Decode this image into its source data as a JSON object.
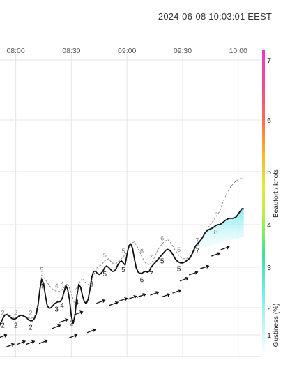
{
  "header": {
    "timestamp": "2024-06-08 10:03:01 EEST"
  },
  "chart_data": {
    "type": "line",
    "x_ticks": [
      "08:00",
      "08:30",
      "09:00",
      "09:30",
      "10:00"
    ],
    "x_tick_minutes": [
      480,
      510,
      540,
      570,
      600
    ],
    "xlim_minutes": [
      470,
      611
    ],
    "color_scale": {
      "ylabel": "Beaufort / knots",
      "ylabel_gust": "Gustiness (%)",
      "beaufort_ticks": [
        1,
        2,
        3,
        4,
        5,
        6,
        7
      ],
      "colors": [
        "#ffffff",
        "#bdf3f5",
        "#6fe7ee",
        "#38e39a",
        "#aef046",
        "#e7e93a",
        "#f7b42a",
        "#f86a54",
        "#f34a8e",
        "#f035c4"
      ]
    },
    "series": [
      {
        "name": "wind",
        "style": "solid",
        "x": [
          470,
          471,
          472,
          473,
          474,
          475,
          476,
          477,
          478,
          479,
          480,
          481,
          482,
          483,
          484,
          485,
          486,
          487,
          488,
          489,
          490,
          491,
          492,
          493,
          494,
          495,
          496,
          497,
          498,
          499,
          500,
          501,
          502,
          503,
          504,
          505,
          506,
          507,
          508,
          509,
          510,
          511,
          512,
          513,
          514,
          515,
          516,
          517,
          518,
          519,
          520,
          521,
          522,
          523,
          524,
          525,
          526,
          527,
          528,
          529,
          530,
          531,
          532,
          533,
          534,
          535,
          536,
          537,
          538,
          539,
          540,
          541,
          542,
          543,
          544,
          545,
          546,
          547,
          548,
          549,
          550,
          551,
          552,
          553,
          554,
          555,
          556,
          557,
          558,
          559,
          560,
          561,
          562,
          563,
          564,
          565,
          566,
          567,
          568,
          569,
          570,
          571,
          572,
          573,
          574,
          575,
          576,
          577,
          578,
          579,
          580,
          581,
          582,
          583,
          584,
          585,
          586,
          587,
          588,
          589,
          590,
          591,
          592,
          593,
          594,
          595,
          596,
          597,
          598,
          599,
          600,
          601,
          602,
          603
        ],
        "y": [
          1.2,
          1.3,
          1.45,
          1.6,
          1.72,
          1.75,
          1.72,
          1.65,
          1.6,
          1.58,
          1.6,
          1.65,
          1.7,
          1.72,
          1.7,
          1.67,
          1.62,
          1.55,
          1.52,
          1.52,
          1.6,
          1.75,
          2.05,
          2.45,
          2.7,
          2.6,
          2.3,
          2.05,
          1.98,
          2.0,
          2.05,
          2.1,
          2.13,
          2.15,
          2.15,
          2.22,
          2.38,
          2.55,
          2.45,
          2.2,
          1.68,
          1.42,
          1.75,
          2.3,
          2.58,
          2.5,
          2.3,
          2.15,
          2.1,
          2.2,
          2.45,
          2.75,
          2.9,
          2.9,
          2.85,
          2.82,
          2.85,
          2.9,
          3.0,
          3.03,
          3.0,
          2.95,
          2.9,
          2.9,
          2.95,
          3.05,
          3.12,
          3.15,
          3.1,
          3.05,
          3.3,
          3.5,
          3.55,
          3.45,
          3.2,
          2.98,
          2.88,
          2.85,
          2.85,
          2.88,
          2.9,
          2.88,
          2.9,
          3.0,
          3.05,
          3.1,
          3.15,
          3.2,
          3.25,
          3.3,
          3.35,
          3.4,
          3.42,
          3.4,
          3.35,
          3.28,
          3.2,
          3.15,
          3.12,
          3.1,
          3.1,
          3.12,
          3.15,
          3.18,
          3.22,
          3.3,
          3.4,
          3.5,
          3.55,
          3.6,
          3.65,
          3.72,
          3.8,
          3.85,
          3.88,
          3.9,
          3.92,
          3.95,
          3.98,
          4.0,
          4.0,
          4.02,
          4.05,
          4.08,
          4.1,
          4.12,
          4.12,
          4.12,
          4.13,
          4.15,
          4.2,
          4.25,
          4.3,
          4.3
        ]
      },
      {
        "name": "gust",
        "style": "dashed",
        "x": [
          470,
          472,
          474,
          476,
          478,
          480,
          482,
          484,
          486,
          488,
          490,
          492,
          494,
          496,
          498,
          500,
          502,
          504,
          506,
          508,
          510,
          512,
          514,
          516,
          518,
          520,
          522,
          524,
          526,
          528,
          530,
          532,
          534,
          536,
          538,
          540,
          542,
          544,
          546,
          548,
          550,
          552,
          554,
          556,
          558,
          560,
          562,
          564,
          566,
          568,
          570,
          572,
          574,
          576,
          578,
          580,
          582,
          584,
          586,
          588,
          590,
          592,
          594,
          596,
          598,
          600,
          602,
          603
        ],
        "y": [
          1.25,
          1.45,
          1.75,
          1.78,
          1.65,
          1.62,
          1.72,
          1.72,
          1.65,
          1.6,
          1.65,
          2.1,
          2.8,
          2.7,
          2.55,
          2.45,
          2.4,
          2.4,
          2.5,
          2.6,
          2.35,
          2.05,
          2.6,
          2.72,
          2.6,
          2.55,
          2.8,
          3.0,
          3.05,
          3.15,
          3.2,
          3.1,
          3.08,
          3.15,
          3.25,
          3.35,
          3.55,
          3.6,
          3.45,
          3.25,
          3.1,
          3.05,
          3.15,
          3.35,
          3.5,
          3.6,
          3.65,
          3.55,
          3.4,
          3.28,
          3.2,
          3.2,
          3.25,
          3.35,
          3.5,
          3.65,
          3.8,
          3.95,
          4.05,
          4.15,
          4.25,
          4.45,
          4.6,
          4.72,
          4.8,
          4.85,
          4.88,
          4.9
        ]
      }
    ],
    "wind_labels": [
      {
        "minute": 473,
        "value": 2
      },
      {
        "minute": 480,
        "value": 2
      },
      {
        "minute": 488,
        "value": 2
      },
      {
        "minute": 494,
        "value": 4
      },
      {
        "minute": 502,
        "value": 3
      },
      {
        "minute": 505,
        "value": 4
      },
      {
        "minute": 510,
        "value": 2
      },
      {
        "minute": 513,
        "value": 4
      },
      {
        "minute": 521,
        "value": 3
      },
      {
        "minute": 528,
        "value": 5
      },
      {
        "minute": 538,
        "value": 5
      },
      {
        "minute": 548,
        "value": 6
      },
      {
        "minute": 553,
        "value": 7
      },
      {
        "minute": 559,
        "value": 5
      },
      {
        "minute": 568,
        "value": 5
      },
      {
        "minute": 578,
        "value": 7
      },
      {
        "minute": 588,
        "value": 8
      }
    ],
    "gust_labels": [
      {
        "minute": 473,
        "value": 2
      },
      {
        "minute": 480,
        "value": 2
      },
      {
        "minute": 488,
        "value": 2
      },
      {
        "minute": 494,
        "value": 5
      },
      {
        "minute": 502,
        "value": 4
      },
      {
        "minute": 505,
        "value": 4
      },
      {
        "minute": 513,
        "value": 4
      },
      {
        "minute": 528,
        "value": 5
      },
      {
        "minute": 538,
        "value": 5
      },
      {
        "minute": 548,
        "value": 6
      },
      {
        "minute": 553,
        "value": 7
      },
      {
        "minute": 559,
        "value": 6
      },
      {
        "minute": 568,
        "value": 5
      },
      {
        "minute": 578,
        "value": 7
      },
      {
        "minute": 588,
        "value": 9
      }
    ],
    "arrows": [
      {
        "minute": 473,
        "level": 0.95,
        "angle_deg": -20
      },
      {
        "minute": 477,
        "level": 0.62,
        "angle_deg": -20
      },
      {
        "minute": 483,
        "level": 0.72,
        "angle_deg": -22
      },
      {
        "minute": 488,
        "level": 0.72,
        "angle_deg": -20
      },
      {
        "minute": 495,
        "level": 0.75,
        "angle_deg": -22
      },
      {
        "minute": 502,
        "level": 1.3,
        "angle_deg": -22
      },
      {
        "minute": 506,
        "level": 1.52,
        "angle_deg": -20
      },
      {
        "minute": 511,
        "level": 0.95,
        "angle_deg": -22
      },
      {
        "minute": 514,
        "level": 1.8,
        "angle_deg": -20
      },
      {
        "minute": 521,
        "level": 1.15,
        "angle_deg": -22
      },
      {
        "minute": 526,
        "level": 2.15,
        "angle_deg": -20
      },
      {
        "minute": 533,
        "level": 2.1,
        "angle_deg": -20
      },
      {
        "minute": 538,
        "level": 2.2,
        "angle_deg": -18
      },
      {
        "minute": 543,
        "level": 2.25,
        "angle_deg": -20
      },
      {
        "minute": 548,
        "level": 2.3,
        "angle_deg": -20
      },
      {
        "minute": 555,
        "level": 2.35,
        "angle_deg": -20
      },
      {
        "minute": 561,
        "level": 2.3,
        "angle_deg": -18
      },
      {
        "minute": 567,
        "level": 2.4,
        "angle_deg": -20
      },
      {
        "minute": 571,
        "level": 2.7,
        "angle_deg": -20
      },
      {
        "minute": 576,
        "level": 2.85,
        "angle_deg": -18
      },
      {
        "minute": 582,
        "level": 3.0,
        "angle_deg": -18
      },
      {
        "minute": 588,
        "level": 3.3,
        "angle_deg": -20
      },
      {
        "minute": 593,
        "level": 3.45,
        "angle_deg": -20
      }
    ],
    "grid": true
  }
}
